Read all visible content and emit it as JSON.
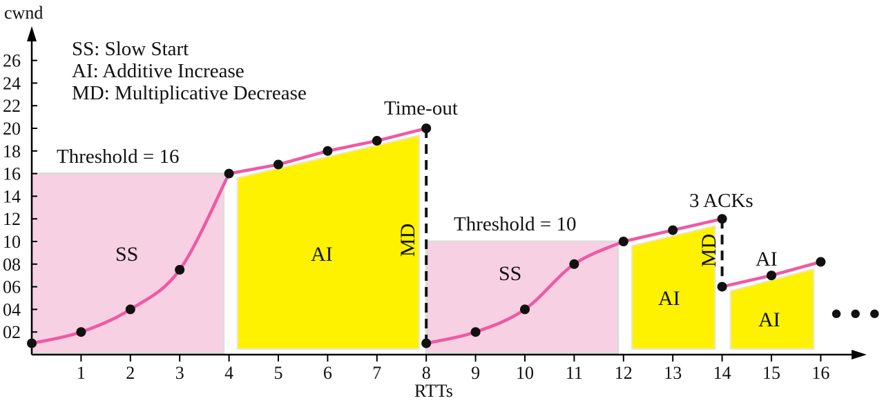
{
  "colors": {
    "ss_fill": "#f8d0e3",
    "ai_fill": "#fff200",
    "line": "#ee5aa2",
    "marker": "#111111",
    "threshold_band": "#dcdcdc"
  },
  "axes": {
    "y_label": "cwnd",
    "x_label": "RTTs",
    "y_ticks": [
      "02",
      "04",
      "06",
      "08",
      "10",
      "12",
      "14",
      "16",
      "18",
      "20",
      "22",
      "24",
      "26"
    ],
    "x_ticks": [
      "1",
      "2",
      "3",
      "4",
      "5",
      "6",
      "7",
      "8",
      "9",
      "10",
      "11",
      "12",
      "13",
      "14",
      "15",
      "16"
    ]
  },
  "legend": [
    "SS: Slow Start",
    "AI: Additive Increase",
    "MD: Multiplicative Decrease"
  ],
  "annotations": {
    "threshold_1": "Threshold = 16",
    "threshold_2": "Threshold = 10",
    "timeout": "Time-out",
    "three_acks": "3 ACKs",
    "md": "MD",
    "ellipsis": "• • •"
  },
  "regions": {
    "ss": "SS",
    "ai": "AI"
  },
  "chart_data": {
    "type": "line",
    "xlabel": "RTTs",
    "ylabel": "cwnd",
    "xlim": [
      0,
      17.5
    ],
    "ylim": [
      0,
      27
    ],
    "points": [
      {
        "x": 0,
        "y": 1
      },
      {
        "x": 1,
        "y": 2
      },
      {
        "x": 2,
        "y": 4
      },
      {
        "x": 3,
        "y": 7.5
      },
      {
        "x": 4,
        "y": 16
      },
      {
        "x": 5,
        "y": 16.8
      },
      {
        "x": 6,
        "y": 18
      },
      {
        "x": 7,
        "y": 18.9
      },
      {
        "x": 8,
        "y": 20
      },
      {
        "x": 8,
        "y": 1
      },
      {
        "x": 9,
        "y": 2
      },
      {
        "x": 10,
        "y": 4
      },
      {
        "x": 11,
        "y": 8
      },
      {
        "x": 12,
        "y": 10
      },
      {
        "x": 13,
        "y": 11
      },
      {
        "x": 14,
        "y": 12
      },
      {
        "x": 14,
        "y": 6
      },
      {
        "x": 15,
        "y": 7
      },
      {
        "x": 16,
        "y": 8.2
      }
    ],
    "segments": [
      {
        "phase": "SS",
        "x": [
          0,
          1,
          2,
          3,
          4
        ],
        "y": [
          1,
          2,
          4,
          7.5,
          16
        ]
      },
      {
        "phase": "AI",
        "x": [
          4,
          5,
          6,
          7,
          8
        ],
        "y": [
          16,
          16.8,
          18,
          18.9,
          20
        ]
      },
      {
        "phase": "SS",
        "x": [
          8,
          9,
          10,
          11,
          12
        ],
        "y": [
          1,
          2,
          4,
          8,
          10
        ]
      },
      {
        "phase": "AI",
        "x": [
          12,
          13,
          14
        ],
        "y": [
          10,
          11,
          12
        ]
      },
      {
        "phase": "AI",
        "x": [
          14,
          15,
          16
        ],
        "y": [
          6,
          7,
          8.2
        ]
      }
    ],
    "drops": [
      {
        "x": 8,
        "from": 20,
        "to": 1,
        "event": "Time-out"
      },
      {
        "x": 14,
        "from": 12,
        "to": 6,
        "event": "3 ACKs"
      }
    ],
    "thresholds": [
      {
        "value": 16,
        "from": 0,
        "to": 4
      },
      {
        "value": 10,
        "from": 8,
        "to": 12
      }
    ]
  }
}
